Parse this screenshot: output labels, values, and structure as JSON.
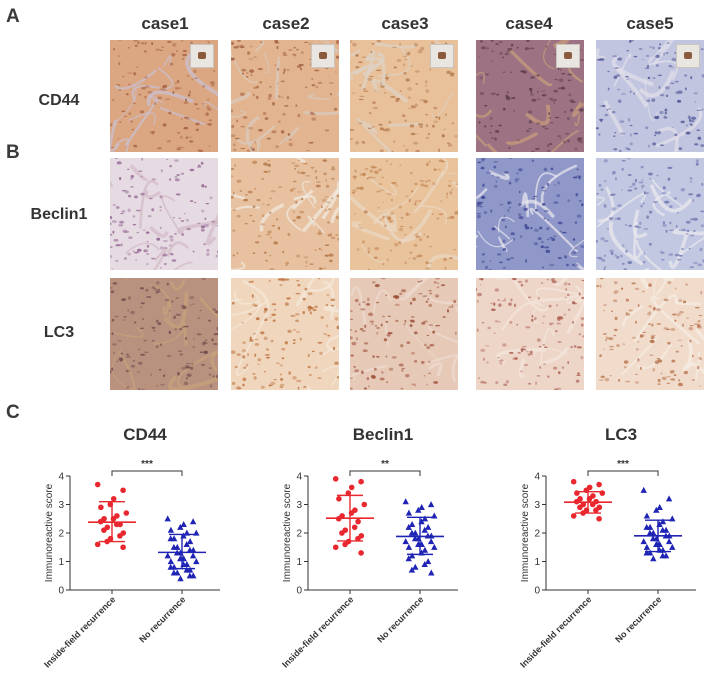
{
  "panels": {
    "a": "A",
    "b": "B",
    "c": "C"
  },
  "cases": [
    "case1",
    "case2",
    "case3",
    "case4",
    "case5"
  ],
  "rows": [
    {
      "label": "CD44",
      "tiles": [
        {
          "base": "#dba783",
          "spot": "#a25c3c",
          "vein": "#c9c0d4",
          "inset": true
        },
        {
          "base": "#e2b48f",
          "spot": "#a2613e",
          "vein": "#d9cbbf",
          "inset": true
        },
        {
          "base": "#e8c19b",
          "spot": "#b17547",
          "vein": "#ddd3c8",
          "inset": true
        },
        {
          "base": "#9d7384",
          "spot": "#5b3a4b",
          "vein": "#c9a07a",
          "inset": true
        },
        {
          "base": "#c2c5e0",
          "spot": "#4e5596",
          "vein": "#e2e0ea",
          "inset": true
        }
      ]
    },
    {
      "label": "Beclin1",
      "tiles": [
        {
          "base": "#e6dbe2",
          "spot": "#8e5d8d",
          "vein": "#d2b9c6",
          "inset": false
        },
        {
          "base": "#e8c2a0",
          "spot": "#b27443",
          "vein": "#f0e9e1",
          "inset": false
        },
        {
          "base": "#e9c39c",
          "spot": "#c28654",
          "vein": "#e8d8c4",
          "inset": false
        },
        {
          "base": "#8f98c8",
          "spot": "#3a4090",
          "vein": "#eceaf0",
          "inset": false
        },
        {
          "base": "#c3c8e2",
          "spot": "#6c72ad",
          "vein": "#eceaf0",
          "inset": false
        }
      ]
    },
    {
      "label": "LC3",
      "tiles": [
        {
          "base": "#b8927e",
          "spot": "#6e4a4c",
          "vein": "#c9a27c",
          "inset": false
        },
        {
          "base": "#f0d6bc",
          "spot": "#b86a35",
          "vein": "#f3e8dc",
          "inset": false
        },
        {
          "base": "#e6c9b7",
          "spot": "#9a4a31",
          "vein": "#ecdcd0",
          "inset": false
        },
        {
          "base": "#edd6c8",
          "spot": "#a8584a",
          "vein": "#f3e6dc",
          "inset": false
        },
        {
          "base": "#f1dccb",
          "spot": "#b66f4a",
          "vein": "#f5ece4",
          "inset": false
        }
      ]
    }
  ],
  "colors": {
    "recurrence": "#e8282e",
    "no_recurrence": "#1f24b4",
    "axis": "#333333"
  },
  "chart_data": [
    {
      "type": "scatter",
      "title": "CD44",
      "ylabel": "Immunoreactive score",
      "categories": [
        "Inside-field recurrence",
        "No recurrence"
      ],
      "ylim": [
        0,
        4
      ],
      "yticks": [
        0,
        1,
        2,
        3,
        4
      ],
      "significance": "***",
      "series": [
        {
          "name": "Inside-field recurrence",
          "marker": "circle",
          "mean": 2.38,
          "sd_low": 1.7,
          "sd_high": 3.1,
          "values": [
            3.7,
            3.5,
            3.2,
            3.0,
            2.9,
            2.7,
            2.6,
            2.5,
            2.5,
            2.4,
            2.3,
            2.3,
            2.2,
            2.1,
            2.0,
            1.9,
            1.8,
            1.7,
            1.6,
            1.5
          ]
        },
        {
          "name": "No recurrence",
          "marker": "triangle",
          "mean": 1.32,
          "sd_low": 0.75,
          "sd_high": 1.95,
          "values": [
            2.5,
            2.4,
            2.3,
            2.2,
            2.1,
            2.0,
            2.0,
            1.9,
            1.8,
            1.8,
            1.7,
            1.6,
            1.5,
            1.5,
            1.4,
            1.4,
            1.3,
            1.3,
            1.2,
            1.2,
            1.1,
            1.1,
            1.0,
            1.0,
            0.9,
            0.9,
            0.8,
            0.8,
            0.7,
            0.7,
            0.6,
            0.6,
            0.5,
            0.5,
            0.4
          ]
        }
      ]
    },
    {
      "type": "scatter",
      "title": "Beclin1",
      "ylabel": "Immunoreactive score",
      "categories": [
        "Inside-field recurrence",
        "No recurrence"
      ],
      "ylim": [
        0,
        4
      ],
      "yticks": [
        0,
        1,
        2,
        3,
        4
      ],
      "significance": "**",
      "series": [
        {
          "name": "Inside-field recurrence",
          "marker": "circle",
          "mean": 2.52,
          "sd_low": 1.72,
          "sd_high": 3.32,
          "values": [
            3.9,
            3.8,
            3.6,
            3.4,
            3.2,
            3.0,
            2.8,
            2.7,
            2.6,
            2.5,
            2.4,
            2.2,
            2.1,
            2.0,
            1.9,
            1.8,
            1.7,
            1.6,
            1.5,
            1.3
          ]
        },
        {
          "name": "No recurrence",
          "marker": "triangle",
          "mean": 1.88,
          "sd_low": 1.25,
          "sd_high": 2.55,
          "values": [
            3.1,
            3.0,
            2.9,
            2.8,
            2.7,
            2.6,
            2.5,
            2.4,
            2.3,
            2.2,
            2.2,
            2.1,
            2.0,
            2.0,
            1.9,
            1.9,
            1.8,
            1.8,
            1.7,
            1.7,
            1.6,
            1.6,
            1.5,
            1.5,
            1.4,
            1.3,
            1.2,
            1.1,
            1.0,
            0.9,
            0.8,
            0.7,
            0.6
          ]
        }
      ]
    },
    {
      "type": "scatter",
      "title": "LC3",
      "ylabel": "Immunoreactive score",
      "categories": [
        "Inside-field recurrence",
        "No recurrence"
      ],
      "ylim": [
        0,
        4
      ],
      "yticks": [
        0,
        1,
        2,
        3,
        4
      ],
      "significance": "***",
      "series": [
        {
          "name": "Inside-field recurrence",
          "marker": "circle",
          "mean": 3.08,
          "sd_low": 2.7,
          "sd_high": 3.45,
          "values": [
            3.8,
            3.7,
            3.6,
            3.5,
            3.4,
            3.4,
            3.3,
            3.2,
            3.2,
            3.1,
            3.1,
            3.0,
            3.0,
            2.9,
            2.9,
            2.8,
            2.8,
            2.7,
            2.6,
            2.5
          ]
        },
        {
          "name": "No recurrence",
          "marker": "triangle",
          "mean": 1.9,
          "sd_low": 1.35,
          "sd_high": 2.45,
          "values": [
            3.5,
            3.2,
            2.9,
            2.8,
            2.6,
            2.5,
            2.4,
            2.3,
            2.2,
            2.2,
            2.1,
            2.1,
            2.0,
            2.0,
            1.9,
            1.9,
            1.8,
            1.8,
            1.7,
            1.7,
            1.6,
            1.6,
            1.5,
            1.5,
            1.4,
            1.4,
            1.3,
            1.3,
            1.2,
            1.2,
            1.1
          ]
        }
      ]
    }
  ]
}
